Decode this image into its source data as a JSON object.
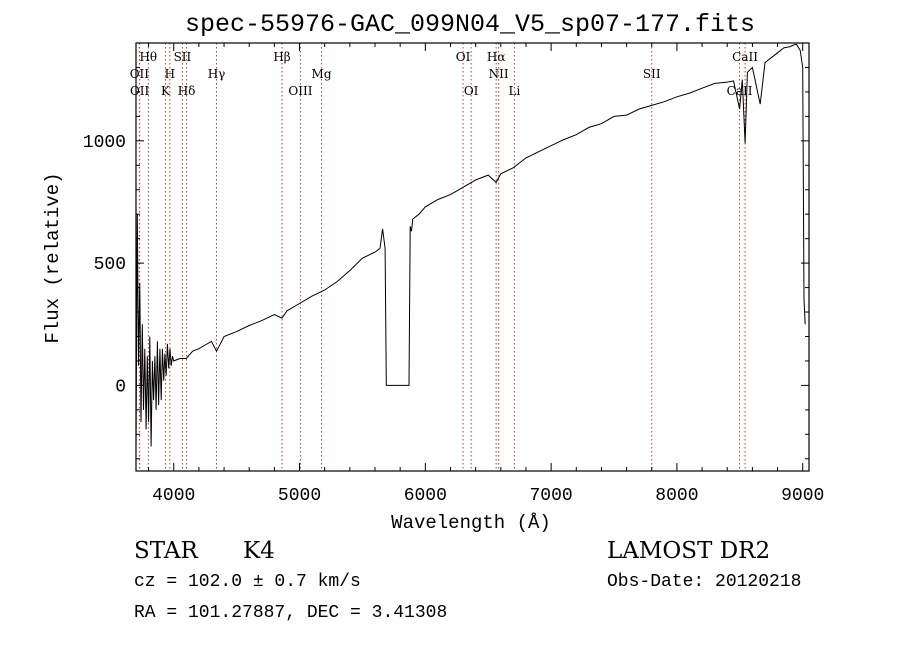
{
  "header": {
    "title": "spec-55976-GAC_099N04_V5_sp07-177.fits"
  },
  "info": {
    "class": "STAR",
    "subclass": "K4",
    "survey": "LAMOST DR2",
    "cz": "cz = 102.0 ± 0.7 km/s",
    "obs_date": "Obs-Date: 20120218",
    "radec": "RA = 101.27887, DEC =    3.41308"
  },
  "colors": {
    "spectrum": "#000000",
    "line_markers": "#c0392b",
    "axes": "#000000"
  },
  "chart_data": {
    "type": "line",
    "title": "spec-55976-GAC_099N04_V5_sp07-177.fits",
    "xlabel": "Wavelength (Å)",
    "ylabel": "Flux (relative)",
    "xlim": [
      3700,
      9050
    ],
    "ylim": [
      -350,
      1400
    ],
    "xticks": [
      4000,
      5000,
      6000,
      7000,
      8000,
      9000
    ],
    "yticks": [
      0,
      500,
      1000
    ],
    "grid": false,
    "legend": "none",
    "series": [
      {
        "x": [
          3700,
          3710,
          3720,
          3730,
          3740,
          3750,
          3760,
          3770,
          3780,
          3790,
          3800,
          3810,
          3820,
          3830,
          3840,
          3850,
          3860,
          3870,
          3880,
          3890,
          3900,
          3910,
          3920,
          3930,
          3940,
          3950,
          3960,
          3970,
          3980,
          3990,
          4000,
          4050,
          4100,
          4150,
          4200,
          4250,
          4300,
          4340,
          4400,
          4500,
          4600,
          4700,
          4800,
          4861,
          4900,
          5000,
          5100,
          5200,
          5300,
          5400,
          5500,
          5600,
          5640,
          5660,
          5680,
          5690,
          5700,
          5750,
          5800,
          5850,
          5870,
          5880,
          5890,
          5900,
          5950,
          6000,
          6100,
          6200,
          6300,
          6400,
          6500,
          6563,
          6600,
          6700,
          6800,
          6900,
          7000,
          7100,
          7200,
          7300,
          7400,
          7500,
          7600,
          7700,
          7800,
          7900,
          8000,
          8100,
          8200,
          8300,
          8400,
          8450,
          8498,
          8520,
          8542,
          8560,
          8600,
          8662,
          8700,
          8750,
          8800,
          8850,
          8900,
          8920,
          8950,
          8980,
          9000,
          9010,
          9020
        ],
        "y": [
          -250,
          700,
          80,
          420,
          -150,
          250,
          -100,
          150,
          -180,
          120,
          -150,
          200,
          -250,
          100,
          -60,
          120,
          -100,
          180,
          -80,
          150,
          -60,
          150,
          20,
          130,
          40,
          170,
          70,
          150,
          80,
          120,
          100,
          110,
          110,
          140,
          150,
          165,
          180,
          140,
          200,
          220,
          245,
          265,
          290,
          275,
          305,
          335,
          365,
          390,
          425,
          470,
          520,
          545,
          560,
          640,
          560,
          0,
          0,
          0,
          0,
          0,
          0,
          650,
          630,
          680,
          700,
          730,
          760,
          780,
          810,
          840,
          860,
          830,
          865,
          890,
          930,
          955,
          980,
          1005,
          1025,
          1055,
          1070,
          1100,
          1105,
          1130,
          1145,
          1160,
          1180,
          1195,
          1215,
          1235,
          1240,
          1245,
          1130,
          1250,
          990,
          1280,
          1300,
          1150,
          1320,
          1340,
          1360,
          1380,
          1385,
          1390,
          1395,
          1370,
          1300,
          350,
          250
        ]
      }
    ],
    "annotations": {
      "line_markers": [
        {
          "label": "Hθ",
          "x": 3798,
          "row": 1
        },
        {
          "label": "OII",
          "x": 3727,
          "row": 2
        },
        {
          "label": "OII",
          "x": 3729,
          "row": 3
        },
        {
          "label": "H",
          "x": 3969,
          "row": 2
        },
        {
          "label": "K",
          "x": 3934,
          "row": 3
        },
        {
          "label": "SII",
          "x": 4069,
          "row": 1
        },
        {
          "label": "Hδ",
          "x": 4102,
          "row": 3
        },
        {
          "label": "Hγ",
          "x": 4340,
          "row": 2
        },
        {
          "label": "Hβ",
          "x": 4861,
          "row": 1
        },
        {
          "label": "OIII",
          "x": 5007,
          "row": 3
        },
        {
          "label": "Mg",
          "x": 5175,
          "row": 2
        },
        {
          "label": "OI",
          "x": 6300,
          "row": 1
        },
        {
          "label": "OI",
          "x": 6364,
          "row": 3
        },
        {
          "label": "Hα",
          "x": 6563,
          "row": 1
        },
        {
          "label": "NII",
          "x": 6583,
          "row": 2
        },
        {
          "label": "Li",
          "x": 6708,
          "row": 3
        },
        {
          "label": "SII",
          "x": 7800,
          "row": 2
        },
        {
          "label": "CaII",
          "x": 8542,
          "row": 1
        },
        {
          "label": "CaII",
          "x": 8498,
          "row": 3
        }
      ]
    }
  }
}
